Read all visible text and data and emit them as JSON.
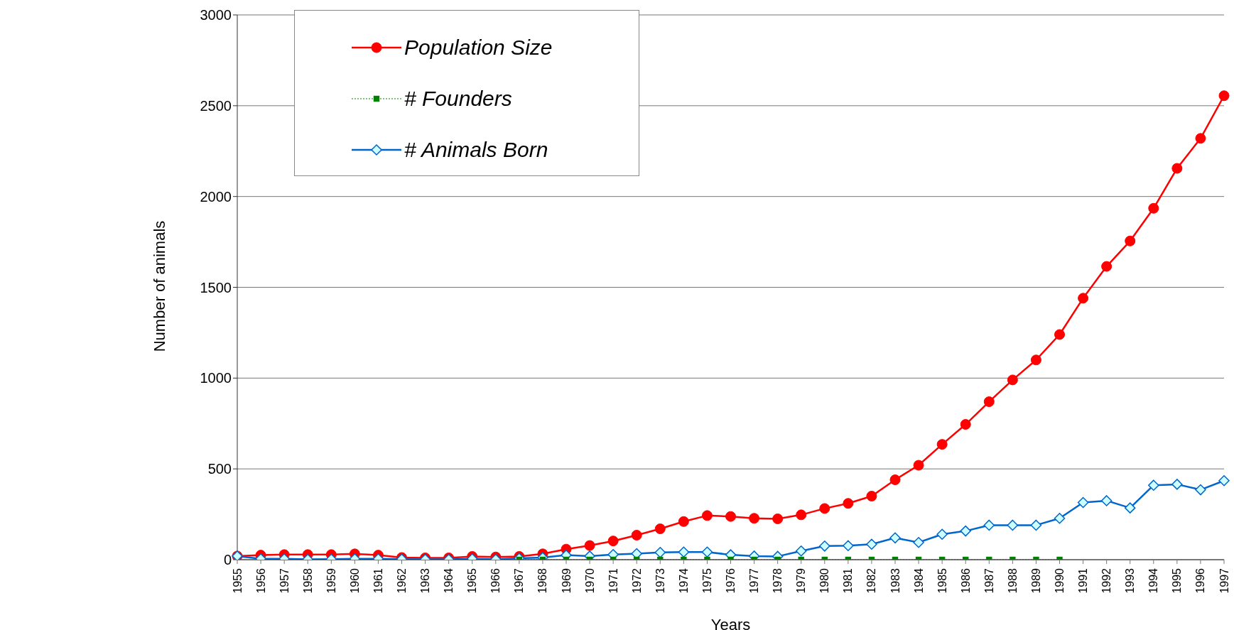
{
  "chart_data": {
    "type": "line",
    "xlabel": "Years",
    "ylabel": "Number of animals",
    "categories": [
      "1955",
      "1956",
      "1957",
      "1958",
      "1959",
      "1960",
      "1961",
      "1962",
      "1963",
      "1964",
      "1965",
      "1966",
      "1967",
      "1968",
      "1969",
      "1970",
      "1971",
      "1972",
      "1973",
      "1974",
      "1975",
      "1976",
      "1977",
      "1978",
      "1979",
      "1980",
      "1981",
      "1982",
      "1983",
      "1984",
      "1985",
      "1986",
      "1987",
      "1988",
      "1989",
      "1990",
      "1991",
      "1992",
      "1993",
      "1994",
      "1995",
      "1996",
      "1997"
    ],
    "series": [
      {
        "name": "Population Size",
        "color": "#ff0000",
        "marker": "circle",
        "line_style": "solid",
        "values": [
          20,
          25,
          28,
          28,
          28,
          32,
          25,
          12,
          10,
          10,
          18,
          15,
          18,
          32,
          58,
          78,
          103,
          135,
          170,
          210,
          243,
          238,
          228,
          225,
          247,
          282,
          310,
          350,
          440,
          520,
          635,
          745,
          870,
          990,
          1100,
          1240,
          1440,
          1615,
          1755,
          1935,
          2155,
          2320,
          2555
        ]
      },
      {
        "name": "# Founders",
        "color": "#008000",
        "marker": "square",
        "line_style": "dotted",
        "values": [
          null,
          null,
          null,
          null,
          null,
          null,
          null,
          null,
          null,
          null,
          null,
          null,
          0,
          0,
          0,
          0,
          0,
          0,
          0,
          0,
          0,
          0,
          0,
          0,
          0,
          0,
          0,
          0,
          0,
          0,
          0,
          0,
          0,
          0,
          0,
          0,
          null,
          null,
          null,
          null,
          null,
          null,
          null
        ]
      },
      {
        "name": "# Animals Born",
        "color": "#0066cc",
        "marker": "diamond",
        "line_style": "solid",
        "values": [
          20,
          5,
          5,
          2,
          3,
          5,
          5,
          3,
          2,
          2,
          5,
          2,
          8,
          12,
          25,
          20,
          28,
          33,
          40,
          42,
          42,
          27,
          20,
          18,
          48,
          75,
          77,
          85,
          120,
          95,
          140,
          158,
          190,
          190,
          190,
          228,
          315,
          325,
          285,
          410,
          415,
          385,
          435
        ]
      }
    ],
    "ylim": [
      0,
      3000
    ],
    "yticks": [
      0,
      500,
      1000,
      1500,
      2000,
      2500,
      3000
    ],
    "grid": "y",
    "legend": "top left"
  }
}
